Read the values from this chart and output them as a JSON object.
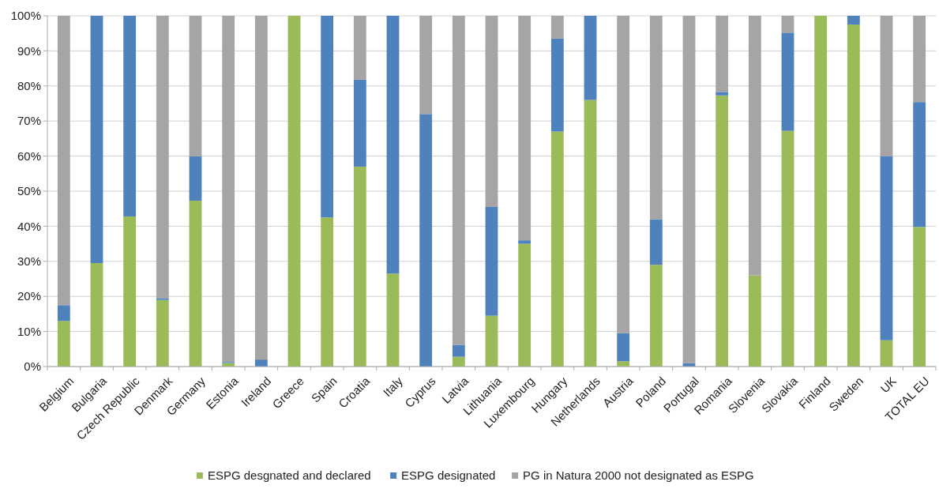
{
  "chart_data": {
    "type": "bar",
    "stacked": true,
    "categories": [
      "Belgium",
      "Bulgaria",
      "Czech Republic",
      "Denmark",
      "Germany",
      "Estonia",
      "Ireland",
      "Greece",
      "Spain",
      "Croatia",
      "Italy",
      "Cyprus",
      "Latvia",
      "Lithuania",
      "Luxembourg",
      "Hungary",
      "Netherlands",
      "Austria",
      "Poland",
      "Portugal",
      "Romania",
      "Slovenia",
      "Slovakia",
      "Finland",
      "Sweden",
      "UK",
      "TOTAL EU"
    ],
    "series": [
      {
        "name": "ESPG desgnated and declared",
        "color": "#9bbb59",
        "values": [
          13,
          29.5,
          42.8,
          19,
          47.3,
          1,
          0,
          100,
          42.5,
          57,
          26.5,
          0,
          2.8,
          14.5,
          35,
          67,
          76,
          1.5,
          29,
          0,
          77.3,
          26,
          67.2,
          100,
          97.5,
          7.5,
          39.8
        ]
      },
      {
        "name": "ESPG designated",
        "color": "#4f81bd",
        "values": [
          4.5,
          70.5,
          57.2,
          0.5,
          12.7,
          0.3,
          2,
          0,
          57.5,
          24.8,
          73.5,
          72,
          3.4,
          31,
          1,
          26.5,
          24,
          8,
          13,
          1,
          1,
          0,
          28,
          0,
          2.5,
          52.5,
          35.6
        ]
      },
      {
        "name": "PG in Natura 2000 not designated as ESPG",
        "color": "#a5a5a5",
        "values": [
          82.5,
          0,
          0,
          80.5,
          40,
          98.7,
          98,
          0,
          0,
          18.2,
          0,
          28,
          93.8,
          54.5,
          64,
          6.5,
          0,
          90.5,
          58,
          99,
          21.7,
          74,
          4.8,
          0,
          0,
          40,
          24.6
        ]
      }
    ],
    "ylim": [
      0,
      100
    ],
    "yticks": [
      {
        "value": 0,
        "label": "0%"
      },
      {
        "value": 10,
        "label": "10%"
      },
      {
        "value": 20,
        "label": "20%"
      },
      {
        "value": 30,
        "label": "30%"
      },
      {
        "value": 40,
        "label": "40%"
      },
      {
        "value": 50,
        "label": "50%"
      },
      {
        "value": 60,
        "label": "60%"
      },
      {
        "value": 70,
        "label": "70%"
      },
      {
        "value": 80,
        "label": "80%"
      },
      {
        "value": 90,
        "label": "90%"
      },
      {
        "value": 100,
        "label": "100%"
      }
    ],
    "grid": "y",
    "legend": "bottom"
  }
}
